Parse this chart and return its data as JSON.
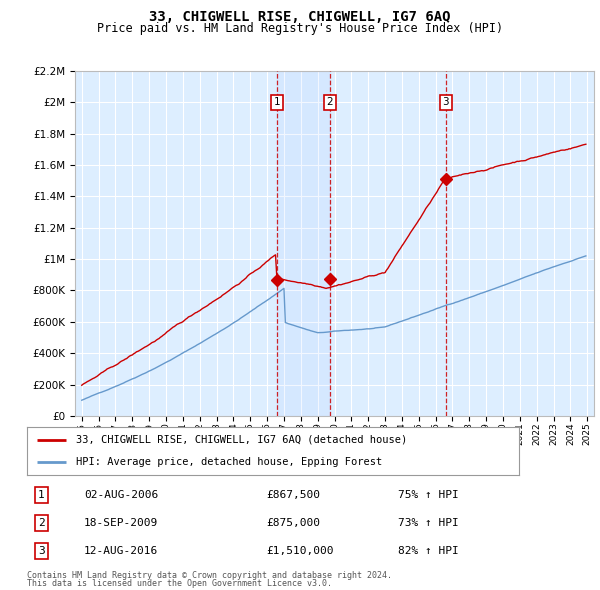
{
  "title": "33, CHIGWELL RISE, CHIGWELL, IG7 6AQ",
  "subtitle": "Price paid vs. HM Land Registry's House Price Index (HPI)",
  "legend_line1": "33, CHIGWELL RISE, CHIGWELL, IG7 6AQ (detached house)",
  "legend_line2": "HPI: Average price, detached house, Epping Forest",
  "footer1": "Contains HM Land Registry data © Crown copyright and database right 2024.",
  "footer2": "This data is licensed under the Open Government Licence v3.0.",
  "table": [
    {
      "num": "1",
      "date": "02-AUG-2006",
      "price": "£867,500",
      "hpi": "75% ↑ HPI"
    },
    {
      "num": "2",
      "date": "18-SEP-2009",
      "price": "£875,000",
      "hpi": "73% ↑ HPI"
    },
    {
      "num": "3",
      "date": "12-AUG-2016",
      "price": "£1,510,000",
      "hpi": "82% ↑ HPI"
    }
  ],
  "sale_markers": [
    {
      "year": 2006.58,
      "value": 867500,
      "label": "1"
    },
    {
      "year": 2009.72,
      "value": 875000,
      "label": "2"
    },
    {
      "year": 2016.61,
      "value": 1510000,
      "label": "3"
    }
  ],
  "ylim": [
    0,
    2200000
  ],
  "yticks": [
    0,
    200000,
    400000,
    600000,
    800000,
    1000000,
    1200000,
    1400000,
    1600000,
    1800000,
    2000000,
    2200000
  ],
  "ytick_labels": [
    "£0",
    "£200K",
    "£400K",
    "£600K",
    "£800K",
    "£1M",
    "£1.2M",
    "£1.4M",
    "£1.6M",
    "£1.8M",
    "£2M",
    "£2.2M"
  ],
  "red_color": "#cc0000",
  "blue_color": "#6699cc",
  "plot_bg": "#ddeeff",
  "grid_color": "#ffffff",
  "shade_color": "#cce0ff"
}
